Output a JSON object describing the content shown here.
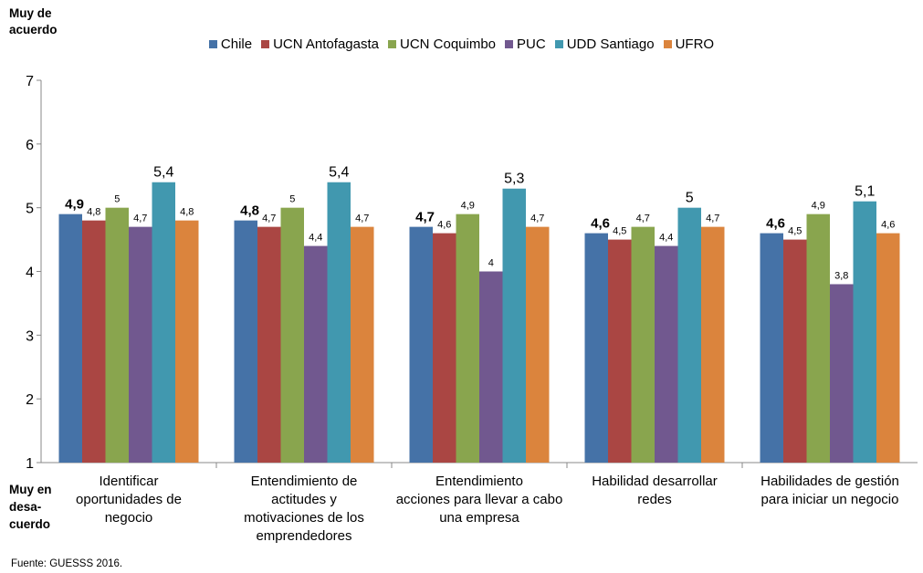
{
  "chart_data": {
    "type": "bar",
    "ylim": [
      1,
      7
    ],
    "yticks": [
      "1",
      "2",
      "3",
      "4",
      "5",
      "6",
      "7"
    ],
    "categories": [
      "Identificar oportunidades de negocio",
      "Entendimiento de actitudes y motivaciones de los emprendedores",
      "Entendimiento acciones para llevar a cabo una empresa",
      "Habilidad desarrollar redes",
      "Habilidades de gestión para iniciar un negocio"
    ],
    "series": [
      {
        "name": "Chile",
        "color": "#4572A7",
        "values": [
          4.9,
          4.8,
          4.7,
          4.6,
          4.6
        ],
        "labels": [
          "4,9",
          "4,8",
          "4,7",
          "4,6",
          "4,6"
        ]
      },
      {
        "name": "UCN Antofagasta",
        "color": "#AA4643",
        "values": [
          4.8,
          4.7,
          4.6,
          4.5,
          4.5
        ],
        "labels": [
          "4,8",
          "4,7",
          "4,6",
          "4,5",
          "4,5"
        ]
      },
      {
        "name": "UCN Coquimbo",
        "color": "#89A54E",
        "values": [
          5.0,
          5.0,
          4.9,
          4.7,
          4.9
        ],
        "labels": [
          "5",
          "5",
          "4,9",
          "4,7",
          "4,9"
        ]
      },
      {
        "name": "PUC",
        "color": "#71588F",
        "values": [
          4.7,
          4.4,
          4.0,
          4.4,
          3.8
        ],
        "labels": [
          "4,7",
          "4,4",
          "4",
          "4,4",
          "3,8"
        ]
      },
      {
        "name": "UDD Santiago",
        "color": "#4198AF",
        "values": [
          5.4,
          5.4,
          5.3,
          5.0,
          5.1
        ],
        "labels": [
          "5,4",
          "5,4",
          "5,3",
          "5",
          "5,1"
        ]
      },
      {
        "name": "UFRO",
        "color": "#DB843D",
        "values": [
          4.8,
          4.7,
          4.7,
          4.7,
          4.6
        ],
        "labels": [
          "4,8",
          "4,7",
          "4,7",
          "4,7",
          "4,6"
        ]
      }
    ],
    "ylabel_top": "Muy de acuerdo",
    "ylabel_bottom": "Muy en desa-cuerdo",
    "source": "Fuente: GUESSS 2016.",
    "legend_position": "top",
    "grid": false
  }
}
